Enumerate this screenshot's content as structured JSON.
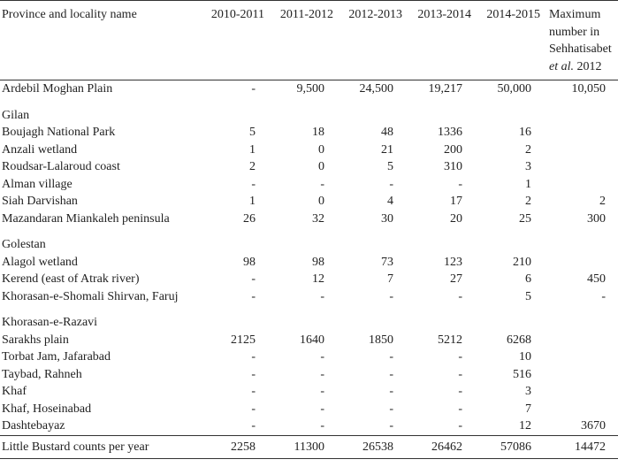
{
  "header": {
    "columns": [
      "Province and locality name",
      "2010-2011",
      "2011-2012",
      "2012-2013",
      "2013-2014",
      "2014-2015"
    ],
    "last": [
      "Maximum number in Sehhatisabet",
      "et al.",
      "2012"
    ]
  },
  "rows": [
    {
      "name": "Ardebil Moghan Plain",
      "values": [
        "-",
        "9,500",
        "24,500",
        "19,217",
        "50,000",
        "10,050"
      ]
    },
    {
      "name": "Gilan"
    },
    {
      "name": "Boujagh National Park",
      "values": [
        "5",
        "18",
        "48",
        "1336",
        "16",
        null
      ]
    },
    {
      "name": "Anzali wetland",
      "values": [
        "1",
        "0",
        "21",
        "200",
        "2",
        null
      ]
    },
    {
      "name": "Roudsar-Lalaroud coast",
      "values": [
        "2",
        "0",
        "5",
        "310",
        "3",
        null
      ]
    },
    {
      "name": "Alman village",
      "values": [
        "-",
        "-",
        "-",
        "-",
        "1",
        null
      ]
    },
    {
      "name": "Siah Darvishan",
      "values": [
        "1",
        "0",
        "4",
        "17",
        "2",
        "2"
      ]
    },
    {
      "name": "Mazandaran Miankaleh peninsula",
      "values": [
        "26",
        "32",
        "30",
        "20",
        "25",
        "300"
      ]
    },
    {
      "name": "Golestan"
    },
    {
      "name": "Alagol wetland",
      "values": [
        "98",
        "98",
        "73",
        "123",
        "210",
        null
      ]
    },
    {
      "name": "Kerend (east of Atrak river)",
      "values": [
        "-",
        "12",
        "7",
        "27",
        "6",
        "450"
      ]
    },
    {
      "name": "Khorasan-e-Shomali Shirvan, Faruj",
      "values": [
        "-",
        "-",
        "-",
        "-",
        "5",
        "-"
      ]
    },
    {
      "name": "Khorasan-e-Razavi"
    },
    {
      "name": "Sarakhs plain",
      "values": [
        "2125",
        "1640",
        "1850",
        "5212",
        "6268",
        null
      ]
    },
    {
      "name": "Torbat Jam, Jafarabad",
      "values": [
        "-",
        "-",
        "-",
        "-",
        "10",
        null
      ]
    },
    {
      "name": "Taybad, Rahneh",
      "values": [
        "-",
        "-",
        "-",
        "-",
        "516",
        null
      ]
    },
    {
      "name": "Khaf",
      "values": [
        "-",
        "-",
        "-",
        "-",
        "3",
        null
      ]
    },
    {
      "name": "Khaf, Hoseinabad",
      "values": [
        "-",
        "-",
        "-",
        "-",
        "7",
        null
      ]
    },
    {
      "name": "Dashtebayaz",
      "values": [
        "-",
        "-",
        "-",
        "-",
        "12",
        "3670"
      ]
    }
  ],
  "total": {
    "name": "Little Bustard counts per year",
    "values": [
      "2258",
      "11300",
      "26538",
      "26462",
      "57086",
      "14472"
    ]
  }
}
